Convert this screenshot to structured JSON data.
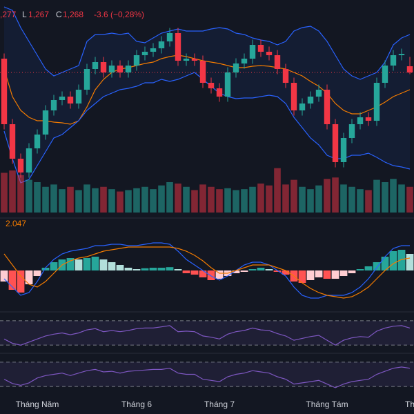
{
  "header": {
    "high_partial": ",277",
    "low_label": "L",
    "low": "1,267",
    "close_label": "C",
    "close": "1,268",
    "change": "-3.6 (−0,28%)"
  },
  "chart_data": [
    {
      "type": "candlestick",
      "up_color": "#26a69a",
      "down_color": "#f23645",
      "ylim": [
        1186,
        1310
      ],
      "categories": [
        null,
        null,
        null,
        null,
        "Tháng Năm",
        null,
        null,
        null,
        null,
        null,
        null,
        null,
        null,
        null,
        null,
        null,
        "Tháng 6",
        null,
        null,
        null,
        null,
        null,
        null,
        null,
        null,
        null,
        "Tháng 7",
        null,
        null,
        null,
        null,
        null,
        null,
        null,
        null,
        null,
        null,
        null,
        null,
        "Tháng Tám",
        null,
        null,
        null,
        null,
        null,
        null,
        null,
        null,
        null,
        "Th"
      ],
      "open": [
        1276,
        1238,
        1218,
        1210,
        1224,
        1232,
        1246,
        1252,
        1254,
        1250,
        1258,
        1270,
        1274,
        1268,
        1272,
        1268,
        1272,
        1278,
        1280,
        1282,
        1286,
        1290.8,
        1274.8,
        1276,
        1274.8,
        1262,
        1258.8,
        1254,
        1268,
        1273.2,
        1276,
        1284,
        1280,
        1278,
        1270,
        1262,
        1246,
        1250,
        1254,
        1258,
        1238,
        1216,
        1230,
        1238,
        1242,
        1240,
        1262,
        1272,
        1278,
        1271.6
      ],
      "high": [
        1279,
        1241,
        1221,
        1227,
        1235,
        1249,
        1255,
        1257,
        1257,
        1261,
        1273,
        1277,
        1277,
        1275,
        1275,
        1275,
        1281,
        1283,
        1285,
        1289,
        1293.8,
        1293.8,
        1279,
        1279,
        1277.8,
        1265,
        1261.8,
        1271,
        1276.2,
        1279,
        1287,
        1287,
        1283,
        1281,
        1273,
        1265,
        1253,
        1257,
        1261,
        1261,
        1241,
        1233,
        1241,
        1245,
        1245,
        1265,
        1275,
        1281,
        1281.8,
        1277
      ],
      "low": [
        1235,
        1215,
        1207,
        1207,
        1221,
        1229,
        1243,
        1249,
        1247,
        1247,
        1255,
        1267,
        1265,
        1265,
        1265,
        1265,
        1269,
        1275,
        1277,
        1279,
        1283,
        1271.8,
        1271.8,
        1271.8,
        1259,
        1255.8,
        1251,
        1251,
        1265,
        1270.2,
        1273,
        1277,
        1275,
        1267,
        1259,
        1243,
        1243,
        1247,
        1251,
        1235,
        1213,
        1213,
        1227,
        1235,
        1237,
        1237,
        1259,
        1269,
        1275,
        1267
      ],
      "close": [
        1238,
        1218,
        1210,
        1224,
        1232,
        1246,
        1252,
        1254,
        1250,
        1258,
        1270,
        1274,
        1268,
        1272,
        1268,
        1272,
        1278,
        1280,
        1282,
        1286,
        1290.8,
        1274.8,
        1276,
        1274.8,
        1262,
        1258.8,
        1254,
        1268,
        1273.2,
        1276,
        1284,
        1280,
        1278,
        1270,
        1262,
        1246,
        1250,
        1254,
        1258,
        1238,
        1216,
        1230,
        1238,
        1242,
        1240,
        1262,
        1272,
        1278,
        1278.8,
        1268
      ],
      "bands": [
        {
          "color": "#2962ff",
          "values": [
            1306,
            1304,
            1294,
            1286,
            1278,
            1270,
            1266,
            1268,
            1270,
            1272,
            1286,
            1290,
            1290,
            1290.8,
            1290,
            1290.8,
            1286,
            1285.2,
            1288,
            1290.8,
            1292,
            1293.2,
            1292,
            1292,
            1292,
            1293.2,
            1294,
            1293.2,
            1290.8,
            1290,
            1288,
            1286.8,
            1286,
            1284,
            1286,
            1292,
            1294,
            1294.8,
            1292,
            1286,
            1278,
            1270,
            1266,
            1264,
            1266,
            1268,
            1274,
            1284,
            1288,
            1290
          ]
        },
        {
          "color": "#f57c00",
          "values": [
            1270,
            1254,
            1246,
            1242,
            1240,
            1240,
            1239.2,
            1238.8,
            1238,
            1240,
            1248,
            1258,
            1264,
            1268,
            1270,
            1270.8,
            1272,
            1273.2,
            1274,
            1276,
            1277.2,
            1278,
            1277.2,
            1276,
            1274.8,
            1274,
            1273.2,
            1272,
            1270.8,
            1270.8,
            1271.6,
            1272,
            1271.6,
            1270.8,
            1270,
            1268,
            1266,
            1262.8,
            1260,
            1256,
            1250,
            1246,
            1244,
            1244,
            1246,
            1248,
            1250.8,
            1254,
            1256,
            1258
          ]
        },
        {
          "color": "#2962ff",
          "values": [
            1234,
            1218,
            1204,
            1206,
            1214,
            1222,
            1230,
            1232,
            1236,
            1240,
            1246,
            1250,
            1254,
            1256,
            1258,
            1258.8,
            1260,
            1262,
            1262,
            1264,
            1262.8,
            1264,
            1266,
            1268,
            1264,
            1260,
            1256,
            1254,
            1252.8,
            1253.2,
            1253.2,
            1254,
            1254.8,
            1254,
            1250,
            1242,
            1236,
            1230,
            1226,
            1220,
            1218,
            1218,
            1220,
            1220,
            1221.2,
            1218.8,
            1216,
            1214,
            1213.2,
            1212
          ]
        }
      ]
    },
    {
      "type": "volume",
      "ylim": [
        0,
        130
      ],
      "values": [
        85,
        90,
        80,
        70,
        65,
        55,
        60,
        50,
        55,
        48,
        60,
        52,
        55,
        50,
        45,
        48,
        52,
        55,
        50,
        58,
        65,
        62,
        55,
        48,
        60,
        55,
        50,
        52,
        48,
        50,
        55,
        62,
        58,
        95,
        60,
        70,
        55,
        50,
        58,
        72,
        75,
        60,
        55,
        50,
        48,
        70,
        65,
        72,
        60,
        55
      ]
    },
    {
      "type": "macd",
      "ylim": [
        -15,
        15
      ],
      "value_label": "2.047",
      "label_color": "#f57c00",
      "histogram": [
        -4,
        -7,
        -8,
        -5,
        -2,
        1,
        3,
        4,
        4.5,
        4,
        4.5,
        5,
        4,
        3,
        2,
        1,
        0.5,
        0.8,
        1,
        1,
        1.2,
        0.5,
        -1,
        -1.5,
        -2.5,
        -3.5,
        -3,
        -2,
        -1,
        -0.5,
        0.5,
        1,
        0.5,
        -0.5,
        -1.5,
        -4,
        -4.5,
        -3.5,
        -2.5,
        -3,
        -3,
        -2,
        -1,
        0.5,
        1.5,
        3,
        5,
        7,
        7.5,
        6
      ],
      "series": [
        {
          "color": "#2962ff",
          "values": [
            -3,
            -6,
            -9,
            -8,
            -4,
            1,
            4,
            6,
            7,
            7.5,
            8,
            9,
            9,
            9.5,
            9.5,
            9,
            9,
            9.5,
            10,
            10,
            9.5,
            7,
            4,
            2,
            0,
            -2,
            -3.5,
            -2,
            0,
            2,
            3,
            3,
            2,
            0,
            -2,
            -6,
            -9,
            -10,
            -10,
            -9,
            -9,
            -9,
            -8,
            -6,
            -3,
            1,
            5,
            8,
            9,
            9
          ]
        },
        {
          "color": "#f57c00",
          "values": [
            6,
            2,
            -2,
            -5,
            -6,
            -4,
            -1,
            2,
            3.5,
            4.5,
            5,
            6,
            7,
            7.5,
            8,
            8.5,
            8.5,
            8.5,
            8.5,
            8.5,
            8.5,
            8,
            7,
            5.5,
            3.5,
            1,
            -1,
            -1,
            0,
            1,
            2,
            2,
            2,
            1,
            0,
            -2,
            -4.5,
            -6.5,
            -8,
            -9,
            -9.5,
            -10,
            -9.5,
            -8,
            -6,
            -3,
            0,
            2.5,
            4,
            4.5
          ]
        }
      ]
    },
    {
      "type": "oscillator",
      "ylim": [
        20,
        80
      ],
      "levels": [
        70,
        30
      ],
      "color": "#7e57c2",
      "values": [
        40,
        33,
        30,
        35,
        40,
        45,
        48,
        50,
        47,
        50,
        55,
        57,
        52,
        54,
        52,
        54,
        57,
        58,
        58,
        60,
        62,
        52,
        53,
        52,
        45,
        43,
        40,
        48,
        52,
        54,
        58,
        55,
        54,
        49,
        45,
        38,
        41,
        44,
        46,
        38,
        30,
        38,
        42,
        44,
        43,
        53,
        58,
        61,
        62,
        58
      ]
    },
    {
      "type": "oscillator",
      "ylim": [
        20,
        80
      ],
      "levels": [
        70,
        30
      ],
      "color": "#7e57c2",
      "values": [
        42,
        35,
        32,
        36,
        44,
        48,
        50,
        52,
        48,
        52,
        56,
        58,
        54,
        55,
        52,
        55,
        56,
        57,
        58,
        58,
        60,
        52,
        50,
        50,
        42,
        40,
        38,
        46,
        50,
        52,
        56,
        54,
        52,
        46,
        42,
        34,
        36,
        38,
        40,
        34,
        28,
        34,
        38,
        40,
        42,
        50,
        55,
        60,
        62,
        60
      ]
    }
  ]
}
